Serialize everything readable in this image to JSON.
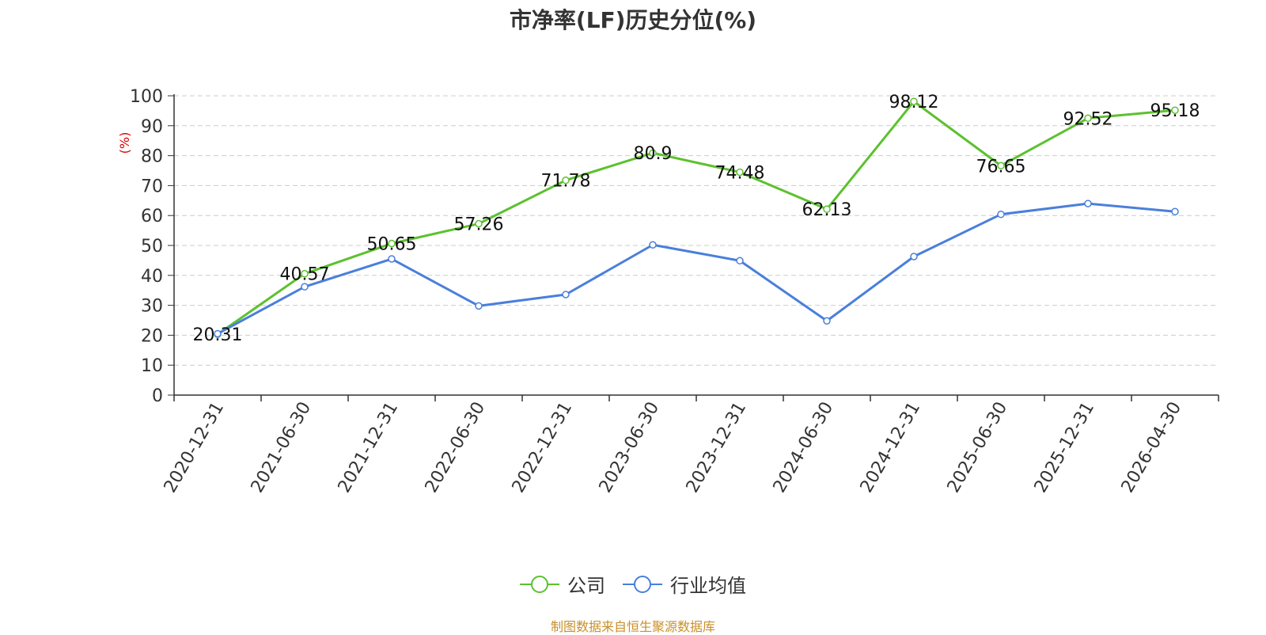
{
  "chart_data": {
    "type": "line",
    "title": "市净率(LF)历史分位(%)",
    "ylabel": "(%)",
    "ylim": [
      0,
      100
    ],
    "yticks": [
      0,
      10,
      20,
      30,
      40,
      50,
      60,
      70,
      80,
      90,
      100
    ],
    "grid": true,
    "legend_position": "bottom",
    "categories": [
      "2020-12-31",
      "2021-06-30",
      "2021-12-31",
      "2022-06-30",
      "2022-12-31",
      "2023-06-30",
      "2023-12-31",
      "2024-06-30",
      "2024-12-31",
      "2025-06-30",
      "2025-12-31",
      "2026-04-30"
    ],
    "series": [
      {
        "name": "公司",
        "color": "#5cc12f",
        "values": [
          20.31,
          40.57,
          50.65,
          57.26,
          71.78,
          80.9,
          74.48,
          62.13,
          98.12,
          76.65,
          92.52,
          95.18
        ],
        "labels": [
          "20.31",
          "40.57",
          "50.65",
          "57.26",
          "71.78",
          "80.9",
          "74.48",
          "62.13",
          "98.12",
          "76.65",
          "92.52",
          "95.18"
        ]
      },
      {
        "name": "行业均值",
        "color": "#4a7fdb",
        "values": [
          20.5,
          36.2,
          45.5,
          29.8,
          33.6,
          50.2,
          44.9,
          24.8,
          46.3,
          60.4,
          64.0,
          61.3
        ]
      }
    ]
  },
  "source_note": "制图数据来自恒生聚源数据库"
}
